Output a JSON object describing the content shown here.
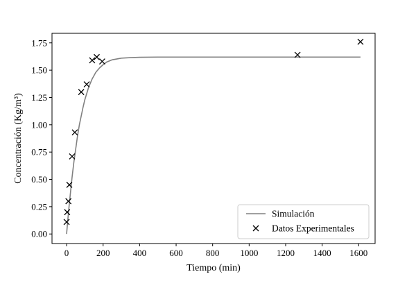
{
  "chart_data": {
    "type": "scatter",
    "xlabel": "Tiempo (min)",
    "ylabel": "Concentración (Kg/m³)",
    "xlim": [
      -80,
      1690
    ],
    "ylim": [
      -0.0875,
      1.8375
    ],
    "x_ticks": [
      0,
      200,
      400,
      600,
      800,
      1000,
      1200,
      1400,
      1600
    ],
    "y_ticks": [
      0.0,
      0.25,
      0.5,
      0.75,
      1.0,
      1.25,
      1.5,
      1.75
    ],
    "x_tick_labels": [
      "0",
      "200",
      "400",
      "600",
      "800",
      "1000",
      "1200",
      "1400",
      "1600"
    ],
    "y_tick_labels": [
      "0.00",
      "0.25",
      "0.50",
      "0.75",
      "1.00",
      "1.25",
      "1.50",
      "1.75"
    ],
    "grid": false,
    "legend_position": "lower-right",
    "series": [
      {
        "name": "Simulación",
        "kind": "line",
        "color": "#808080",
        "x": [
          0,
          5,
          10,
          15,
          20,
          30,
          40,
          50,
          60,
          70,
          80,
          90,
          100,
          120,
          140,
          160,
          180,
          200,
          220,
          250,
          300,
          350,
          400,
          500,
          600,
          800,
          1000,
          1200,
          1400,
          1610
        ],
        "y": [
          0.0,
          0.1,
          0.19,
          0.28,
          0.36,
          0.52,
          0.66,
          0.78,
          0.9,
          1.0,
          1.08,
          1.16,
          1.23,
          1.34,
          1.42,
          1.48,
          1.52,
          1.55,
          1.575,
          1.595,
          1.61,
          1.615,
          1.618,
          1.62,
          1.62,
          1.62,
          1.62,
          1.62,
          1.62,
          1.62
        ]
      },
      {
        "name": "Datos Experimentales",
        "kind": "scatter",
        "marker": "x",
        "color": "#000000",
        "x": [
          0,
          3,
          10,
          15,
          30,
          45,
          80,
          110,
          140,
          165,
          195,
          1265,
          1610
        ],
        "y": [
          0.11,
          0.2,
          0.3,
          0.45,
          0.71,
          0.93,
          1.3,
          1.37,
          1.59,
          1.62,
          1.58,
          1.64,
          1.76
        ]
      }
    ]
  }
}
